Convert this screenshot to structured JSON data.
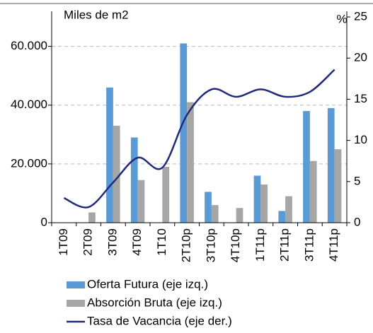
{
  "chart_data": {
    "type": "bar-line",
    "y_label": "Miles de m2",
    "y2_label": "%",
    "categories": [
      "1T09",
      "2T09",
      "3T09",
      "4T09",
      "1T10",
      "2T10p",
      "3T10p",
      "4T10p",
      "1T11p",
      "2T11p",
      "3T11p",
      "4T11p"
    ],
    "series": [
      {
        "name": "Oferta Futura (eje izq.)",
        "color": "#5b9bd5",
        "type": "bar",
        "values": [
          0,
          0,
          46000,
          29000,
          0,
          61000,
          10500,
          0,
          16000,
          4000,
          38000,
          39000
        ]
      },
      {
        "name": "Absorción Bruta (eje izq.)",
        "color": "#a6a6a6",
        "type": "bar",
        "values": [
          0,
          3500,
          33000,
          14500,
          19000,
          41000,
          6000,
          5000,
          13000,
          9000,
          21000,
          25000
        ]
      },
      {
        "name": "Tasa de Vacancia (eje der.)",
        "color": "#1f2a7a",
        "type": "line",
        "axis": "y2",
        "values": [
          3.0,
          1.9,
          4.9,
          7.9,
          6.7,
          13.1,
          16.2,
          15.3,
          16.2,
          15.3,
          15.9,
          18.6
        ]
      }
    ],
    "ylim": [
      0,
      70000
    ],
    "yticks": [
      0,
      {
        "value": 20000,
        "label": "20.000"
      },
      {
        "value": 40000,
        "label": "40.000"
      },
      {
        "value": 60000,
        "label": "60.000"
      }
    ],
    "y2lim": [
      0,
      25
    ],
    "y2ticks": [
      0,
      5,
      10,
      15,
      20,
      25
    ],
    "grid": true
  }
}
